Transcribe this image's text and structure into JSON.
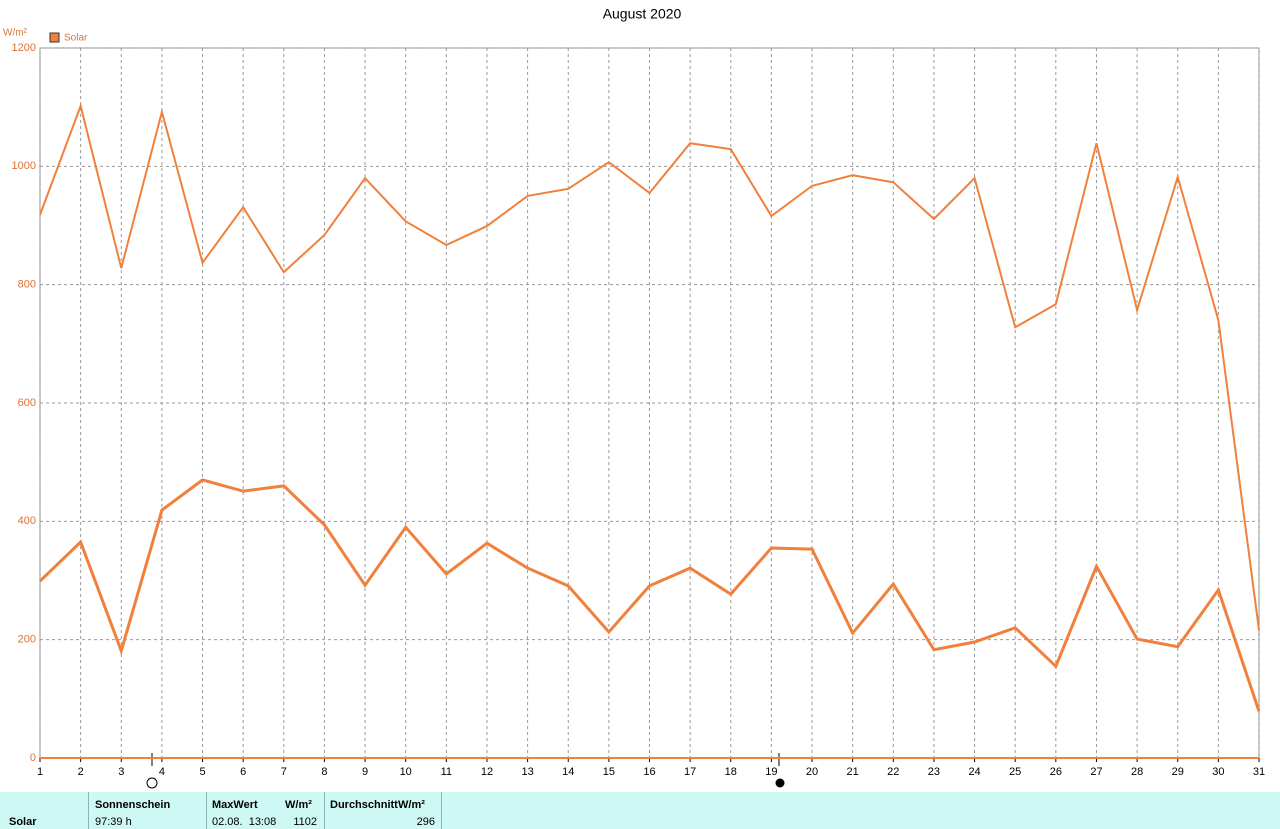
{
  "chart_data": {
    "type": "line",
    "title": "August 2020",
    "y_label": "W/m²",
    "x": [
      1,
      2,
      3,
      4,
      5,
      6,
      7,
      8,
      9,
      10,
      11,
      12,
      13,
      14,
      15,
      16,
      17,
      18,
      19,
      20,
      21,
      22,
      23,
      24,
      25,
      26,
      27,
      28,
      29,
      30,
      31
    ],
    "series": [
      {
        "name": "Solar",
        "color": "#f0803c",
        "values": [
          918,
          1102,
          828,
          1092,
          837,
          931,
          821,
          884,
          980,
          907,
          867,
          899,
          950,
          962,
          1007,
          955,
          1039,
          1029,
          916,
          967,
          985,
          973,
          911,
          980,
          728,
          767,
          1039,
          757,
          982,
          740,
          216
        ]
      },
      {
        "color": "#f0803c",
        "values": [
          299,
          365,
          181,
          419,
          470,
          451,
          460,
          394,
          292,
          390,
          311,
          363,
          321,
          291,
          213,
          291,
          321,
          277,
          355,
          353,
          211,
          294,
          183,
          196,
          220,
          155,
          324,
          201,
          188,
          284,
          79
        ]
      }
    ],
    "xlim": [
      1,
      31
    ],
    "xticks": [
      1,
      2,
      3,
      4,
      5,
      6,
      7,
      8,
      9,
      10,
      11,
      12,
      13,
      14,
      15,
      16,
      17,
      18,
      19,
      20,
      21,
      22,
      23,
      24,
      25,
      26,
      27,
      28,
      29,
      30,
      31
    ],
    "ylim": [
      0,
      1200
    ],
    "yticks": [
      0,
      200,
      400,
      600,
      800,
      1000,
      1200
    ],
    "grid": true
  },
  "summary": {
    "row_label": "Solar",
    "sunshine": {
      "header": "Sonnenschein",
      "value": "97:39 h"
    },
    "max": {
      "header": "MaxWert",
      "unit": "W/m²",
      "time": "02.08.  13:08",
      "value": 1102
    },
    "average": {
      "header": "Durchschnitt",
      "unit": "W/m²",
      "value": 296
    }
  }
}
